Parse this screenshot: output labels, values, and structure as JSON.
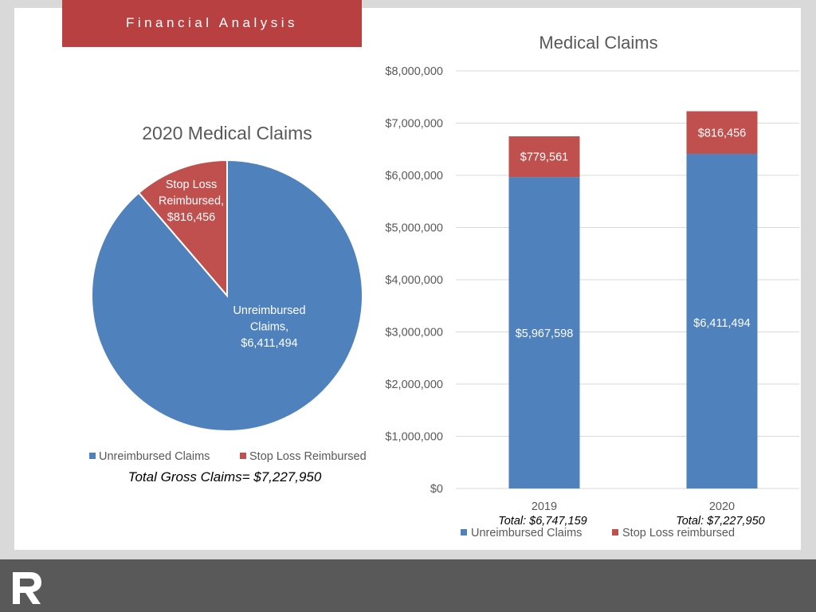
{
  "header": {
    "title": "Financial Analysis"
  },
  "logo": {
    "glyph": "R"
  },
  "colors": {
    "unreimbursed": "#4f81bd",
    "stop_loss": "#c0504d",
    "banner": "#b94040"
  },
  "chart_data": [
    {
      "type": "pie",
      "title": "2020 Medical Claims",
      "slices": [
        {
          "name": "Unreimbursed Claims",
          "value": 6411494,
          "label_lines": [
            "Unreimbursed",
            "Claims,",
            "$6,411,494"
          ],
          "color": "#4f81bd"
        },
        {
          "name": "Stop Loss Reimbursed",
          "value": 816456,
          "label_lines": [
            "Stop Loss",
            "Reimbursed,",
            "$816,456"
          ],
          "color": "#c0504d"
        }
      ],
      "legend": [
        "Unreimbursed Claims",
        "Stop Loss Reimbursed"
      ],
      "legend_placement": "bottom",
      "footnote": "Total Gross Claims= $7,227,950"
    },
    {
      "type": "bar",
      "stacked": true,
      "title": "Medical Claims",
      "categories": [
        "2019",
        "2020"
      ],
      "category_totals": [
        "Total: $6,747,159",
        "Total: $7,227,950"
      ],
      "series": [
        {
          "name": "Unreimbursed Claims",
          "values": [
            5967598,
            6411494
          ],
          "labels": [
            "$5,967,598",
            "$6,411,494"
          ],
          "color": "#4f81bd"
        },
        {
          "name": "Stop Loss reimbursed",
          "values": [
            779561,
            816456
          ],
          "labels": [
            "$779,561",
            "$816,456"
          ],
          "color": "#c0504d"
        }
      ],
      "ylim": [
        0,
        8000000
      ],
      "yticks": [
        {
          "value": 0,
          "label": "$0"
        },
        {
          "value": 1000000,
          "label": "$1,000,000"
        },
        {
          "value": 2000000,
          "label": "$2,000,000"
        },
        {
          "value": 3000000,
          "label": "$3,000,000"
        },
        {
          "value": 4000000,
          "label": "$4,000,000"
        },
        {
          "value": 5000000,
          "label": "$5,000,000"
        },
        {
          "value": 6000000,
          "label": "$6,000,000"
        },
        {
          "value": 7000000,
          "label": "$7,000,000"
        },
        {
          "value": 8000000,
          "label": "$8,000,000"
        }
      ],
      "grid": true,
      "legend_placement": "bottom"
    }
  ]
}
